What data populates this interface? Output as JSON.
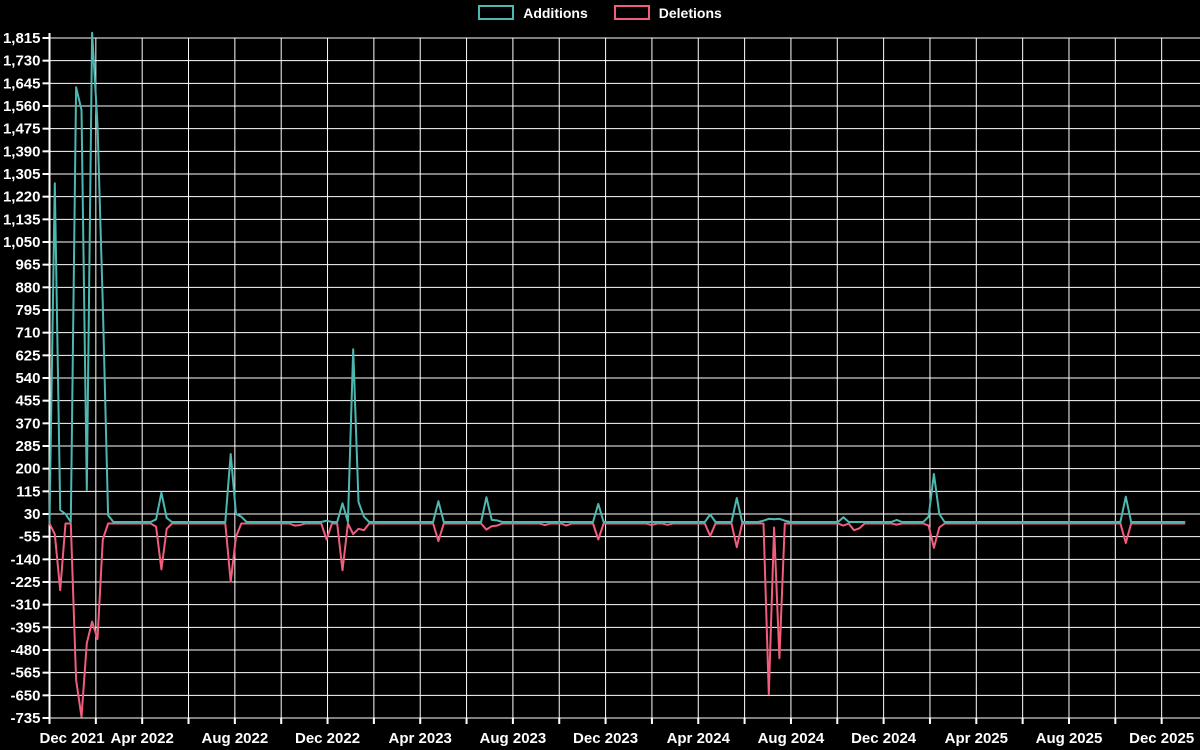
{
  "chart_data": {
    "type": "line",
    "title": "",
    "legend_position": "top-center",
    "background_color": "#000000",
    "grid": true,
    "grid_color": "#ffffff",
    "text_color": "#ffffff",
    "x_axis": {
      "label": "",
      "start_week": "2021-12-05",
      "weeks_total": 214,
      "gridline_interval_months": 2,
      "label_interval_months": 4,
      "tick_labels": [
        "Dec 2021",
        "Apr 2022",
        "Aug 2022",
        "Dec 2022",
        "Apr 2023",
        "Aug 2023",
        "Dec 2023",
        "Apr 2024",
        "Aug 2024",
        "Dec 2024",
        "Apr 2025",
        "Aug 2025",
        "Dec 2025"
      ]
    },
    "y_axis": {
      "label": "",
      "min": -735,
      "max": 1815,
      "step": 85,
      "tick_labels": [
        "1,815",
        "1,730",
        "1,645",
        "1,560",
        "1,475",
        "1,390",
        "1,305",
        "1,220",
        "1,135",
        "1,050",
        "965",
        "880",
        "795",
        "710",
        "625",
        "540",
        "455",
        "370",
        "285",
        "200",
        "115",
        "30",
        "-55",
        "-140",
        "-225",
        "-310",
        "-395",
        "-480",
        "-565",
        "-650",
        "-735"
      ]
    },
    "series": [
      {
        "name": "Additions",
        "color": "#4db8b2",
        "default_value": 0,
        "nonzero_weeks": {
          "1": 1270,
          "2": 45,
          "3": 30,
          "5": 1630,
          "6": 1545,
          "7": 120,
          "8": 1835,
          "9": 1490,
          "10": 815,
          "11": 25,
          "20": 10,
          "21": 110,
          "22": 15,
          "34": 255,
          "35": 30,
          "36": 20,
          "52": 5,
          "55": 70,
          "57": 648,
          "58": 75,
          "59": 20,
          "73": 78,
          "82": 93,
          "83": 8,
          "84": 6,
          "103": 68,
          "124": 28,
          "129": 90,
          "134": 5,
          "135": 12,
          "136": 10,
          "137": 12,
          "138": 5,
          "149": 18,
          "159": 8,
          "165": 20,
          "166": 180,
          "167": 30,
          "202": 95
        }
      },
      {
        "name": "Deletions",
        "color": "#f25d7d",
        "default_value": 0,
        "nonzero_weeks": {
          "1": -40,
          "2": -250,
          "5": -587,
          "6": -725,
          "7": -449,
          "8": -368,
          "9": -433,
          "10": -60,
          "20": -12,
          "21": -172,
          "22": -20,
          "34": -218,
          "35": -50,
          "46": -8,
          "47": -6,
          "52": -60,
          "55": -175,
          "57": -40,
          "58": -20,
          "59": -25,
          "73": -66,
          "82": -23,
          "83": -10,
          "84": -8,
          "93": -6,
          "97": -8,
          "103": -60,
          "113": -6,
          "116": -5,
          "124": -47,
          "129": -89,
          "135": -640,
          "136": -15,
          "137": -505,
          "149": -8,
          "151": -25,
          "152": -18,
          "159": -4,
          "165": -8,
          "166": -91,
          "167": -15,
          "202": -73
        }
      }
    ]
  }
}
